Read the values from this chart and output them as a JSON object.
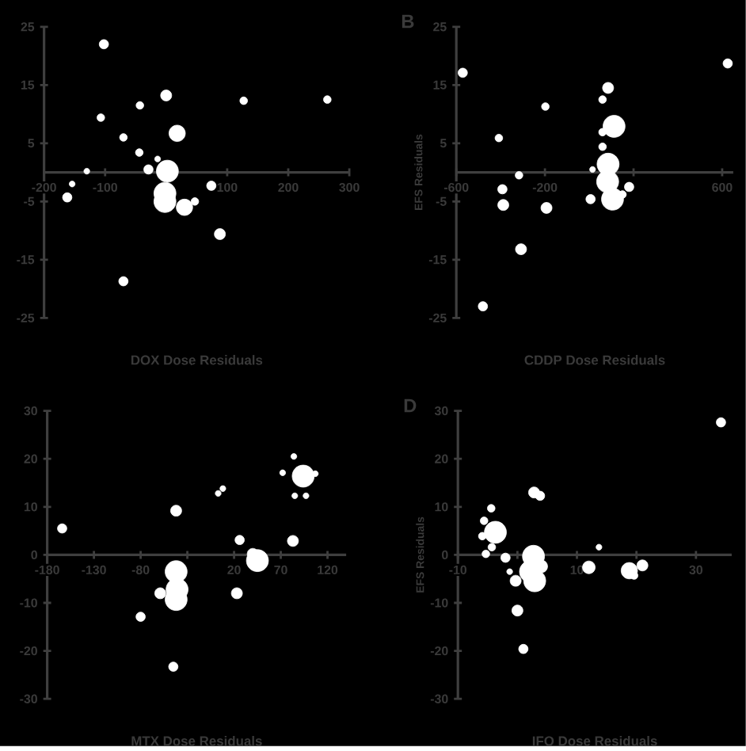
{
  "chart_data": [
    {
      "type": "bubble",
      "xlabel": "DOX Dose Residuals",
      "color": "#ffffff",
      "marker": "circle",
      "x": [
        -102,
        0,
        -43,
        127,
        264,
        -107,
        18,
        -70,
        -44,
        -14,
        -29,
        2,
        -130,
        -154,
        -162,
        -2,
        -2,
        30,
        47,
        74,
        88,
        -70
      ],
      "values": [
        22,
        13.2,
        11.5,
        12.3,
        12.5,
        9.4,
        6.7,
        6,
        3.4,
        2.3,
        0.5,
        0.2,
        0.2,
        -2,
        -4.3,
        -3.6,
        -5,
        -6,
        -5,
        -2.3,
        -10.6,
        -18.7
      ],
      "sizes": [
        0.18,
        0.25,
        0.12,
        0.12,
        0.12,
        0.12,
        0.55,
        0.12,
        0.12,
        0.07,
        0.18,
        1,
        0.07,
        0.07,
        0.18,
        1,
        1,
        0.55,
        0.12,
        0.18,
        0.25,
        0.18
      ],
      "xlim": [
        -200,
        300
      ],
      "xticks": [
        -200,
        -100,
        {
          "value": 0,
          "label": null
        },
        100,
        200,
        300
      ],
      "ylim": [
        -25,
        25
      ],
      "yticks": [
        -25,
        -15,
        -5,
        5,
        15,
        25
      ]
    },
    {
      "type": "bubble",
      "xlabel": "CDDP Dose Residuals",
      "ylabel": "EFS Residuals",
      "annotations": [
        "B"
      ],
      "color": "#ffffff",
      "marker": "circle",
      "x": [
        -571,
        -480,
        -408,
        -392,
        -388,
        -317,
        -308,
        -198,
        -193,
        6,
        15,
        60,
        85,
        60,
        60,
        112,
        85,
        83,
        105,
        150,
        180,
        625
      ],
      "values": [
        17.1,
        -23,
        5.9,
        -2.9,
        -5.6,
        -0.5,
        -13.2,
        11.3,
        -6.1,
        -4.6,
        0.5,
        12.5,
        14.5,
        6.9,
        4.4,
        7.9,
        1.4,
        -1.6,
        -4.6,
        -3.8,
        -2.5,
        18.7
      ],
      "sizes": [
        0.18,
        0.18,
        0.12,
        0.18,
        0.25,
        0.12,
        0.25,
        0.12,
        0.25,
        0.18,
        0.07,
        0.12,
        0.25,
        0.12,
        0.12,
        1,
        1,
        1,
        1,
        0.12,
        0.18,
        0.18
      ],
      "xlim": [
        -600,
        650
      ],
      "xticks": [
        -600,
        -200,
        {
          "value": 200,
          "label": null
        },
        600
      ],
      "ylim": [
        -25,
        25
      ],
      "yticks": [
        -25,
        -15,
        -5,
        5,
        15,
        25
      ]
    },
    {
      "type": "bubble",
      "xlabel": "MTX Dose Residuals",
      "color": "#ffffff",
      "marker": "circle",
      "x": [
        -164,
        -42,
        3,
        8,
        26,
        84,
        72,
        94,
        107,
        85,
        97,
        83,
        40,
        45,
        23,
        -42,
        -41,
        -42,
        -59,
        -80,
        -45
      ],
      "values": [
        5.5,
        9.2,
        12.8,
        13.8,
        3.1,
        20.5,
        17.1,
        16.4,
        16.9,
        12.3,
        12.3,
        2.9,
        0.2,
        -1.2,
        -8,
        -3.5,
        -7.2,
        -9.3,
        -8,
        -12.9,
        -23.3
      ],
      "sizes": [
        0.18,
        0.25,
        0.07,
        0.07,
        0.18,
        0.07,
        0.07,
        1,
        0.07,
        0.07,
        0.07,
        0.25,
        0.25,
        1,
        0.25,
        1,
        1,
        1,
        0.25,
        0.18,
        0.18
      ],
      "xlim": [
        -180,
        140
      ],
      "xticks": [
        -180,
        -130,
        -80,
        {
          "value": -30,
          "label": null
        },
        20,
        70,
        120
      ],
      "ylim": [
        -30,
        30
      ],
      "yticks": [
        -30,
        -20,
        -10,
        0,
        10,
        20,
        30
      ]
    },
    {
      "type": "bubble",
      "xlabel": "IFO Dose Residuals",
      "ylabel": "EFS Residuals",
      "annotations": [
        "D"
      ],
      "color": "#ffffff",
      "marker": "circle",
      "x": [
        34.2,
        -4.4,
        -5.6,
        -3.7,
        -5.9,
        -4.3,
        -5.3,
        -2,
        -1.3,
        -0.3,
        0,
        1,
        2.8,
        3.8,
        2.7,
        4,
        2.2,
        2.9,
        12,
        13.7,
        18.8,
        21,
        19.6
      ],
      "values": [
        27.6,
        9.7,
        7.1,
        4.7,
        3.9,
        1.6,
        0.2,
        -0.6,
        -3.5,
        -5.4,
        -11.6,
        -19.6,
        13,
        12.3,
        -0.3,
        -2.4,
        -3.5,
        -5.4,
        -2.6,
        1.6,
        -3.3,
        -2.2,
        -4.3
      ],
      "sizes": [
        0.18,
        0.12,
        0.12,
        1,
        0.12,
        0.12,
        0.12,
        0.18,
        0.07,
        0.25,
        0.25,
        0.18,
        0.25,
        0.18,
        1,
        0.33,
        1,
        1,
        0.33,
        0.07,
        0.55,
        0.25,
        0.12
      ],
      "xlim": [
        -10,
        36
      ],
      "xticks": [
        -10,
        {
          "value": 0,
          "label": null
        },
        10,
        {
          "value": 20,
          "label": null
        },
        30
      ],
      "ylim": [
        -30,
        30
      ],
      "yticks": [
        -30,
        -20,
        -10,
        0,
        10,
        20,
        30
      ]
    }
  ]
}
